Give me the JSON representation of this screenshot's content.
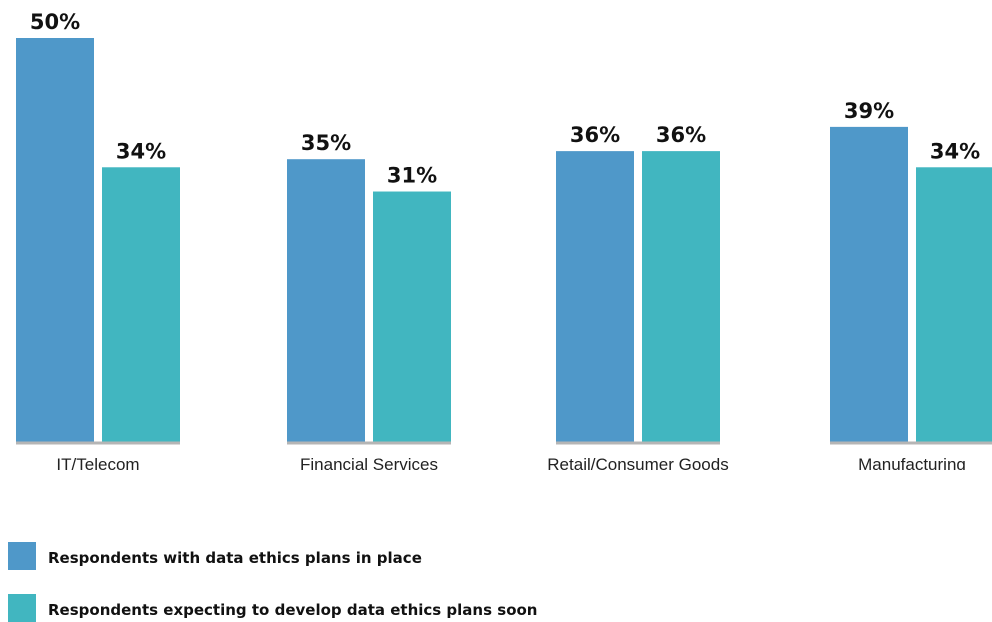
{
  "chart_data": {
    "type": "bar",
    "categories": [
      "IT/Telecom",
      "Financial Services",
      "Retail/Consumer Goods",
      "Manufacturing"
    ],
    "series": [
      {
        "name": "Respondents with data ethics plans in place",
        "values": [
          50,
          35,
          36,
          39
        ],
        "color": "#4F98C9"
      },
      {
        "name": "Respondents expecting to develop data ethics plans soon",
        "values": [
          34,
          31,
          36,
          34
        ],
        "color": "#41B6C0"
      }
    ],
    "value_labels": [
      [
        "50%",
        "35%",
        "36%",
        "39%"
      ],
      [
        "34%",
        "31%",
        "36%",
        "34%"
      ]
    ],
    "title": "",
    "xlabel": "",
    "ylabel": "",
    "ylim": [
      0,
      50
    ],
    "grid": false,
    "legend_position": "bottom-left"
  },
  "legend": {
    "items": [
      {
        "label": "Respondents with data ethics plans in place",
        "color": "#4F98C9"
      },
      {
        "label": "Respondents expecting to develop data ethics plans soon",
        "color": "#41B6C0"
      }
    ]
  }
}
